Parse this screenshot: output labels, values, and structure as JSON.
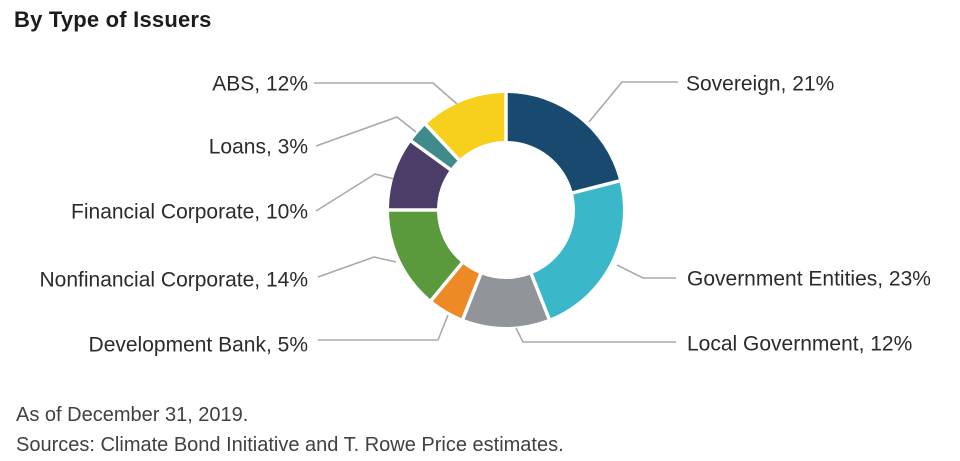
{
  "header": {
    "title": "By Type of Issuers"
  },
  "chart_data": {
    "type": "pie",
    "subtype": "donut",
    "title": "By Type of Issuers",
    "direction": "clockwise",
    "start_angle_deg": 0,
    "start_position": "12-oclock",
    "donut_hole_ratio": 0.59,
    "legend_position": "callout-labels",
    "leader_line_color": "#a7aaad",
    "label_color": "#2b2b2b",
    "segments": [
      {
        "label": "Sovereign",
        "value": 21,
        "display": "Sovereign, 21%",
        "color": "#174a6e"
      },
      {
        "label": "Government Entities",
        "value": 23,
        "display": "Government Entities, 23%",
        "color": "#3ab8ca"
      },
      {
        "label": "Local Government",
        "value": 12,
        "display": "Local Government, 12%",
        "color": "#91959a"
      },
      {
        "label": "Development Bank",
        "value": 5,
        "display": "Development Bank, 5%",
        "color": "#ee8a26"
      },
      {
        "label": "Nonfinancial Corporate",
        "value": 14,
        "display": "Nonfinancial Corporate, 14%",
        "color": "#5a9a3c"
      },
      {
        "label": "Financial Corporate",
        "value": 10,
        "display": "Financial Corporate, 10%",
        "color": "#4b3c68"
      },
      {
        "label": "Loans",
        "value": 3,
        "display": "Loans, 3%",
        "color": "#418a8c"
      },
      {
        "label": "ABS",
        "value": 12,
        "display": "ABS, 12%",
        "color": "#f7d01e"
      }
    ]
  },
  "footer": {
    "as_of": "As of December 31, 2019.",
    "sources": "Sources: Climate Bond Initiative and T. Rowe Price estimates."
  }
}
